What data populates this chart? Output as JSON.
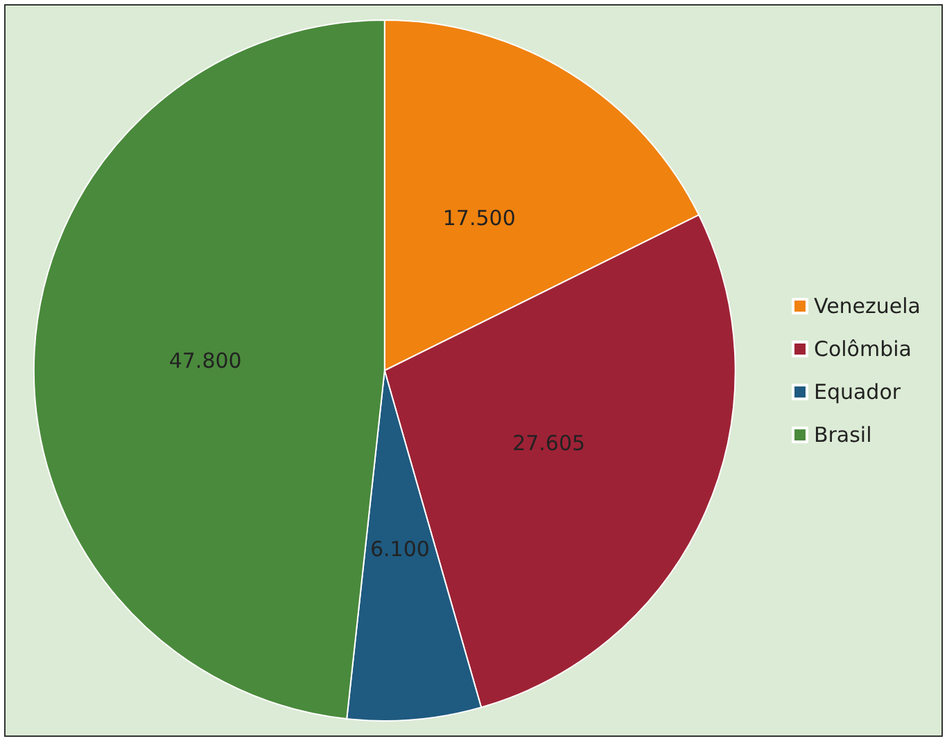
{
  "chart_data": {
    "type": "pie",
    "categories": [
      "Venezuela",
      "Colômbia",
      "Equador",
      "Brasil"
    ],
    "values": [
      17500,
      27605,
      6100,
      47800
    ],
    "value_labels": [
      "17.500",
      "27.605",
      "6.100",
      "47.800"
    ],
    "colors": [
      "#f0820f",
      "#9e2235",
      "#1f5a80",
      "#4a8a3c"
    ],
    "legend": "right"
  }
}
